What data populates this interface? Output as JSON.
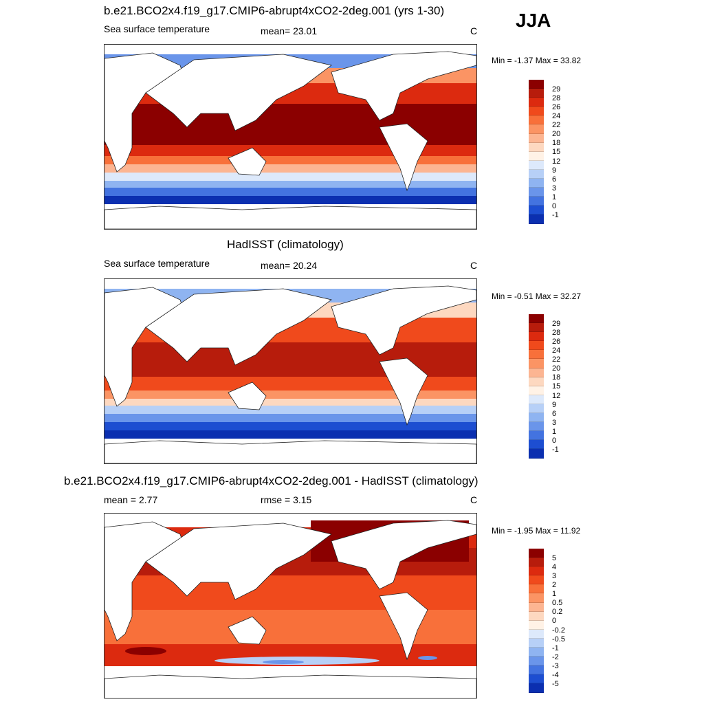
{
  "season": "JJA",
  "panels": [
    {
      "title": "b.e21.BCO2x4.f19_g17.CMIP6-abrupt4xCO2-2deg.001 (yrs 1-30)",
      "left_label": "Sea surface temperature",
      "mid_label": "mean=  23.01",
      "units": "C",
      "minmax": "Min =  -1.37 Max =  33.82",
      "colorbar_labels": [
        "29",
        "28",
        "26",
        "24",
        "22",
        "20",
        "18",
        "15",
        "12",
        "9",
        "6",
        "3",
        "1",
        "0",
        "-1"
      ],
      "colors": [
        "#8b0000",
        "#b71c0c",
        "#dc2a0f",
        "#f04a1c",
        "#f8703a",
        "#fb9464",
        "#fcb592",
        "#fdd8c0",
        "#fff2e6",
        "#dde9fb",
        "#b7d0f7",
        "#8fb4f1",
        "#6a95ea",
        "#4373e0",
        "#1d4ed1",
        "#0b2fb0",
        "#001a80"
      ]
    },
    {
      "title": "HadISST (climatology)",
      "left_label": "Sea surface temperature",
      "mid_label": "mean=  20.24",
      "units": "C",
      "minmax": "Min =  -0.51 Max =  32.27",
      "colorbar_labels": [
        "29",
        "28",
        "26",
        "24",
        "22",
        "20",
        "18",
        "15",
        "12",
        "9",
        "6",
        "3",
        "1",
        "0",
        "-1"
      ],
      "colors": [
        "#8b0000",
        "#b71c0c",
        "#dc2a0f",
        "#f04a1c",
        "#f8703a",
        "#fb9464",
        "#fcb592",
        "#fdd8c0",
        "#fff2e6",
        "#dde9fb",
        "#b7d0f7",
        "#8fb4f1",
        "#6a95ea",
        "#4373e0",
        "#1d4ed1",
        "#0b2fb0",
        "#001a80"
      ]
    },
    {
      "title": "b.e21.BCO2x4.f19_g17.CMIP6-abrupt4xCO2-2deg.001 - HadISST (climatology)",
      "left_label": "mean =   2.77",
      "mid_label": "rmse =   3.15",
      "units": "C",
      "minmax": "Min =  -1.95 Max =  11.92",
      "colorbar_labels": [
        "5",
        "4",
        "3",
        "2",
        "1",
        "0.5",
        "0.2",
        "0",
        "-0.2",
        "-0.5",
        "-1",
        "-2",
        "-3",
        "-4",
        "-5"
      ],
      "colors": [
        "#8b0000",
        "#b71c0c",
        "#dc2a0f",
        "#f04a1c",
        "#f8703a",
        "#fb9464",
        "#fcb592",
        "#fdd8c0",
        "#fff2e6",
        "#dde9fb",
        "#b7d0f7",
        "#8fb4f1",
        "#6a95ea",
        "#4373e0",
        "#1d4ed1",
        "#0b2fb0",
        "#001a80"
      ]
    }
  ]
}
